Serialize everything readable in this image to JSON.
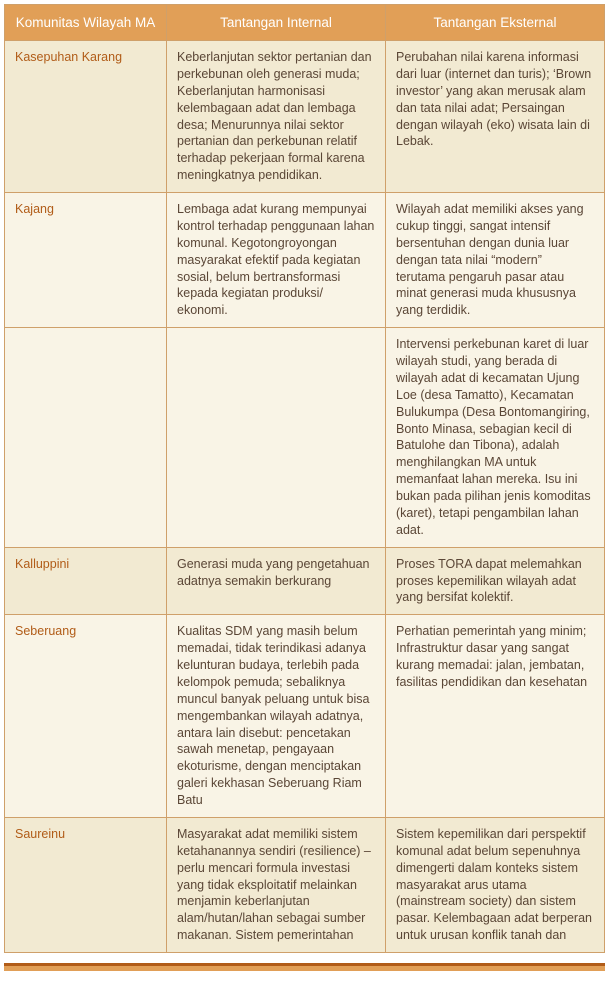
{
  "headers": {
    "col1": "Komunitas Wilayah MA",
    "col2": "Tantangan Internal",
    "col3": "Tantangan Eksternal"
  },
  "rows": [
    {
      "name": "Kasepuhan Karang",
      "internal": "Keberlanjutan sektor pertanian dan perkebunan oleh generasi muda; Keberlanjutan harmonisasi kelembagaan adat dan lembaga desa; Menurunnya nilai sektor pertanian dan perkebunan relatif terhadap pekerjaan formal karena meningkatnya pendidikan.",
      "external": "Perubahan nilai karena informasi dari luar (internet dan turis); ‘Brown investor’ yang akan merusak alam dan tata nilai adat; Persaingan dengan wilayah (eko) wisata lain di Lebak."
    },
    {
      "name": "Kajang",
      "internal": "Lembaga adat kurang mempunyai kontrol terhadap penggunaan lahan komunal. Kegotongroyongan masyarakat efektif pada kegiatan sosial, belum bertransformasi kepada kegiatan produksi/ ekonomi.",
      "external": "Wilayah adat memiliki akses yang cukup tinggi, sangat intensif bersentuhan dengan dunia luar dengan tata nilai “modern” terutama pengaruh pasar atau minat generasi muda khususnya yang terdidik."
    },
    {
      "name": "",
      "internal": "",
      "external": "Intervensi perkebunan karet di luar wilayah studi, yang berada di wilayah adat di kecamatan Ujung Loe (desa Tamatto), Kecamatan Bulukumpa (Desa Bontomangiring, Bonto Minasa, sebagian kecil di Batulohe dan Tibona), adalah menghilangkan MA untuk memanfaat lahan mereka. Isu ini bukan pada pilihan jenis komoditas (karet), tetapi pengambilan lahan adat."
    },
    {
      "name": "Kalluppini",
      "internal": "Generasi muda yang pengetahuan adatnya semakin berkurang",
      "external": "Proses TORA dapat melemahkan proses kepemilikan wilayah adat yang bersifat kolektif."
    },
    {
      "name": "Seberuang",
      "internal": "Kualitas SDM yang masih belum memadai, tidak terindikasi adanya kelunturan budaya, terlebih pada kelompok pemuda; sebaliknya muncul banyak peluang untuk bisa mengembankan wilayah adatnya, antara lain disebut: pencetakan sawah menetap, pengayaan ekoturisme, dengan menciptakan galeri kekhasan Seberuang Riam Batu",
      "external": "Perhatian pemerintah yang minim; Infrastruktur dasar yang sangat kurang memadai: jalan, jembatan, fasilitas pendidikan dan kesehatan"
    },
    {
      "name": "Saureinu",
      "internal": "Masyarakat adat memiliki sistem ketahanannya sendiri (resilience) – perlu mencari formula investasi yang tidak eksploitatif melainkan menjamin keberlanjutan alam/hutan/lahan sebagai sumber makanan. Sistem pemerintahan",
      "external": "Sistem kepemilikan dari perspektif komunal adat belum sepenuhnya dimengerti dalam konteks sistem masyarakat arus utama (mainstream society) dan sistem pasar.  Kelembagaan adat berperan untuk urusan konflik tanah dan"
    }
  ],
  "bands": [
    "a",
    "b",
    "b",
    "a",
    "b",
    "a"
  ]
}
